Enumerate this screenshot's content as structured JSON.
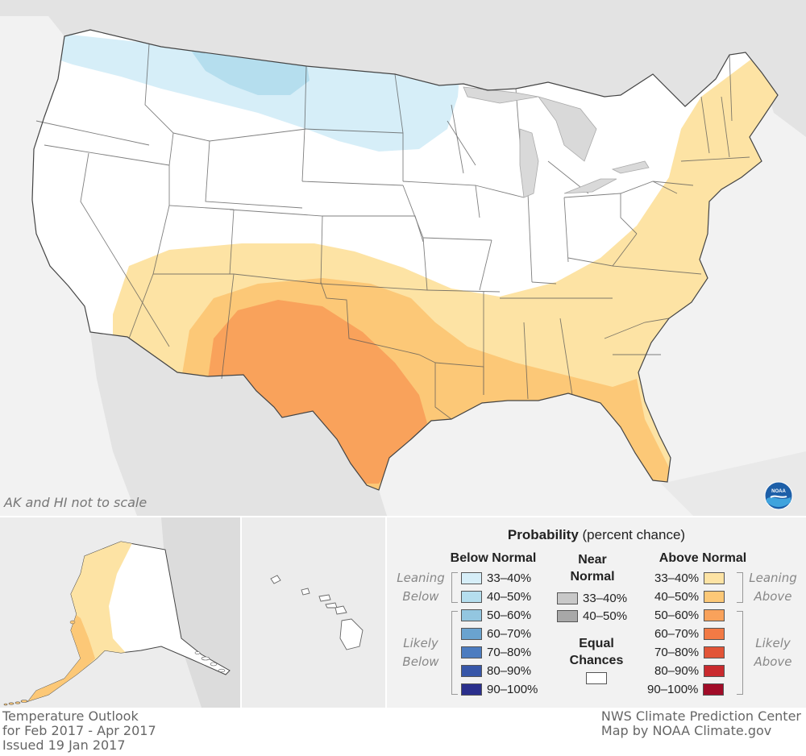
{
  "map": {
    "scale_note": "AK and HI not to scale",
    "logo_text": "NOAA",
    "colors": {
      "background": "#f2f2f2",
      "neighbor_land": "#e3e3e3",
      "water": "#f2f2f2",
      "state_fill": "#ffffff",
      "state_border": "#555555"
    }
  },
  "legend": {
    "title_bold": "Probability",
    "title_rest": " (percent chance)",
    "below": {
      "heading": "Below Normal",
      "leaning_label": "Leaning Below",
      "likely_label": "Likely Below",
      "items": [
        {
          "label": "33–40%",
          "color": "#d6eef8"
        },
        {
          "label": "40–50%",
          "color": "#b5deee"
        },
        {
          "label": "50–60%",
          "color": "#93c6e0"
        },
        {
          "label": "60–70%",
          "color": "#6aa3cf"
        },
        {
          "label": "70–80%",
          "color": "#4c7cc0"
        },
        {
          "label": "80–90%",
          "color": "#3756a8"
        },
        {
          "label": "90–100%",
          "color": "#2a2f8c"
        }
      ]
    },
    "near": {
      "heading_line1": "Near",
      "heading_line2": "Normal",
      "items": [
        {
          "label": "33–40%",
          "color": "#c8c8c8"
        },
        {
          "label": "40–50%",
          "color": "#a8a8a8"
        }
      ],
      "equal_line1": "Equal",
      "equal_line2": "Chances",
      "equal_color": "#ffffff"
    },
    "above": {
      "heading": "Above Normal",
      "leaning_label": "Leaning Above",
      "likely_label": "Likely Above",
      "items": [
        {
          "label": "33–40%",
          "color": "#fde3a4"
        },
        {
          "label": "40–50%",
          "color": "#fcc877"
        },
        {
          "label": "50–60%",
          "color": "#f9a25b"
        },
        {
          "label": "60–70%",
          "color": "#f27a45"
        },
        {
          "label": "70–80%",
          "color": "#e25437"
        },
        {
          "label": "80–90%",
          "color": "#c92a2e"
        },
        {
          "label": "90–100%",
          "color": "#a10c28"
        }
      ]
    }
  },
  "footer": {
    "left_line1": "Temperature Outlook",
    "left_line2": "for Feb 2017 - Apr 2017",
    "left_line3": "Issued 19 Jan 2017",
    "right_line1": "NWS Climate Prediction Center",
    "right_line2": "Map by NOAA Climate.gov"
  }
}
